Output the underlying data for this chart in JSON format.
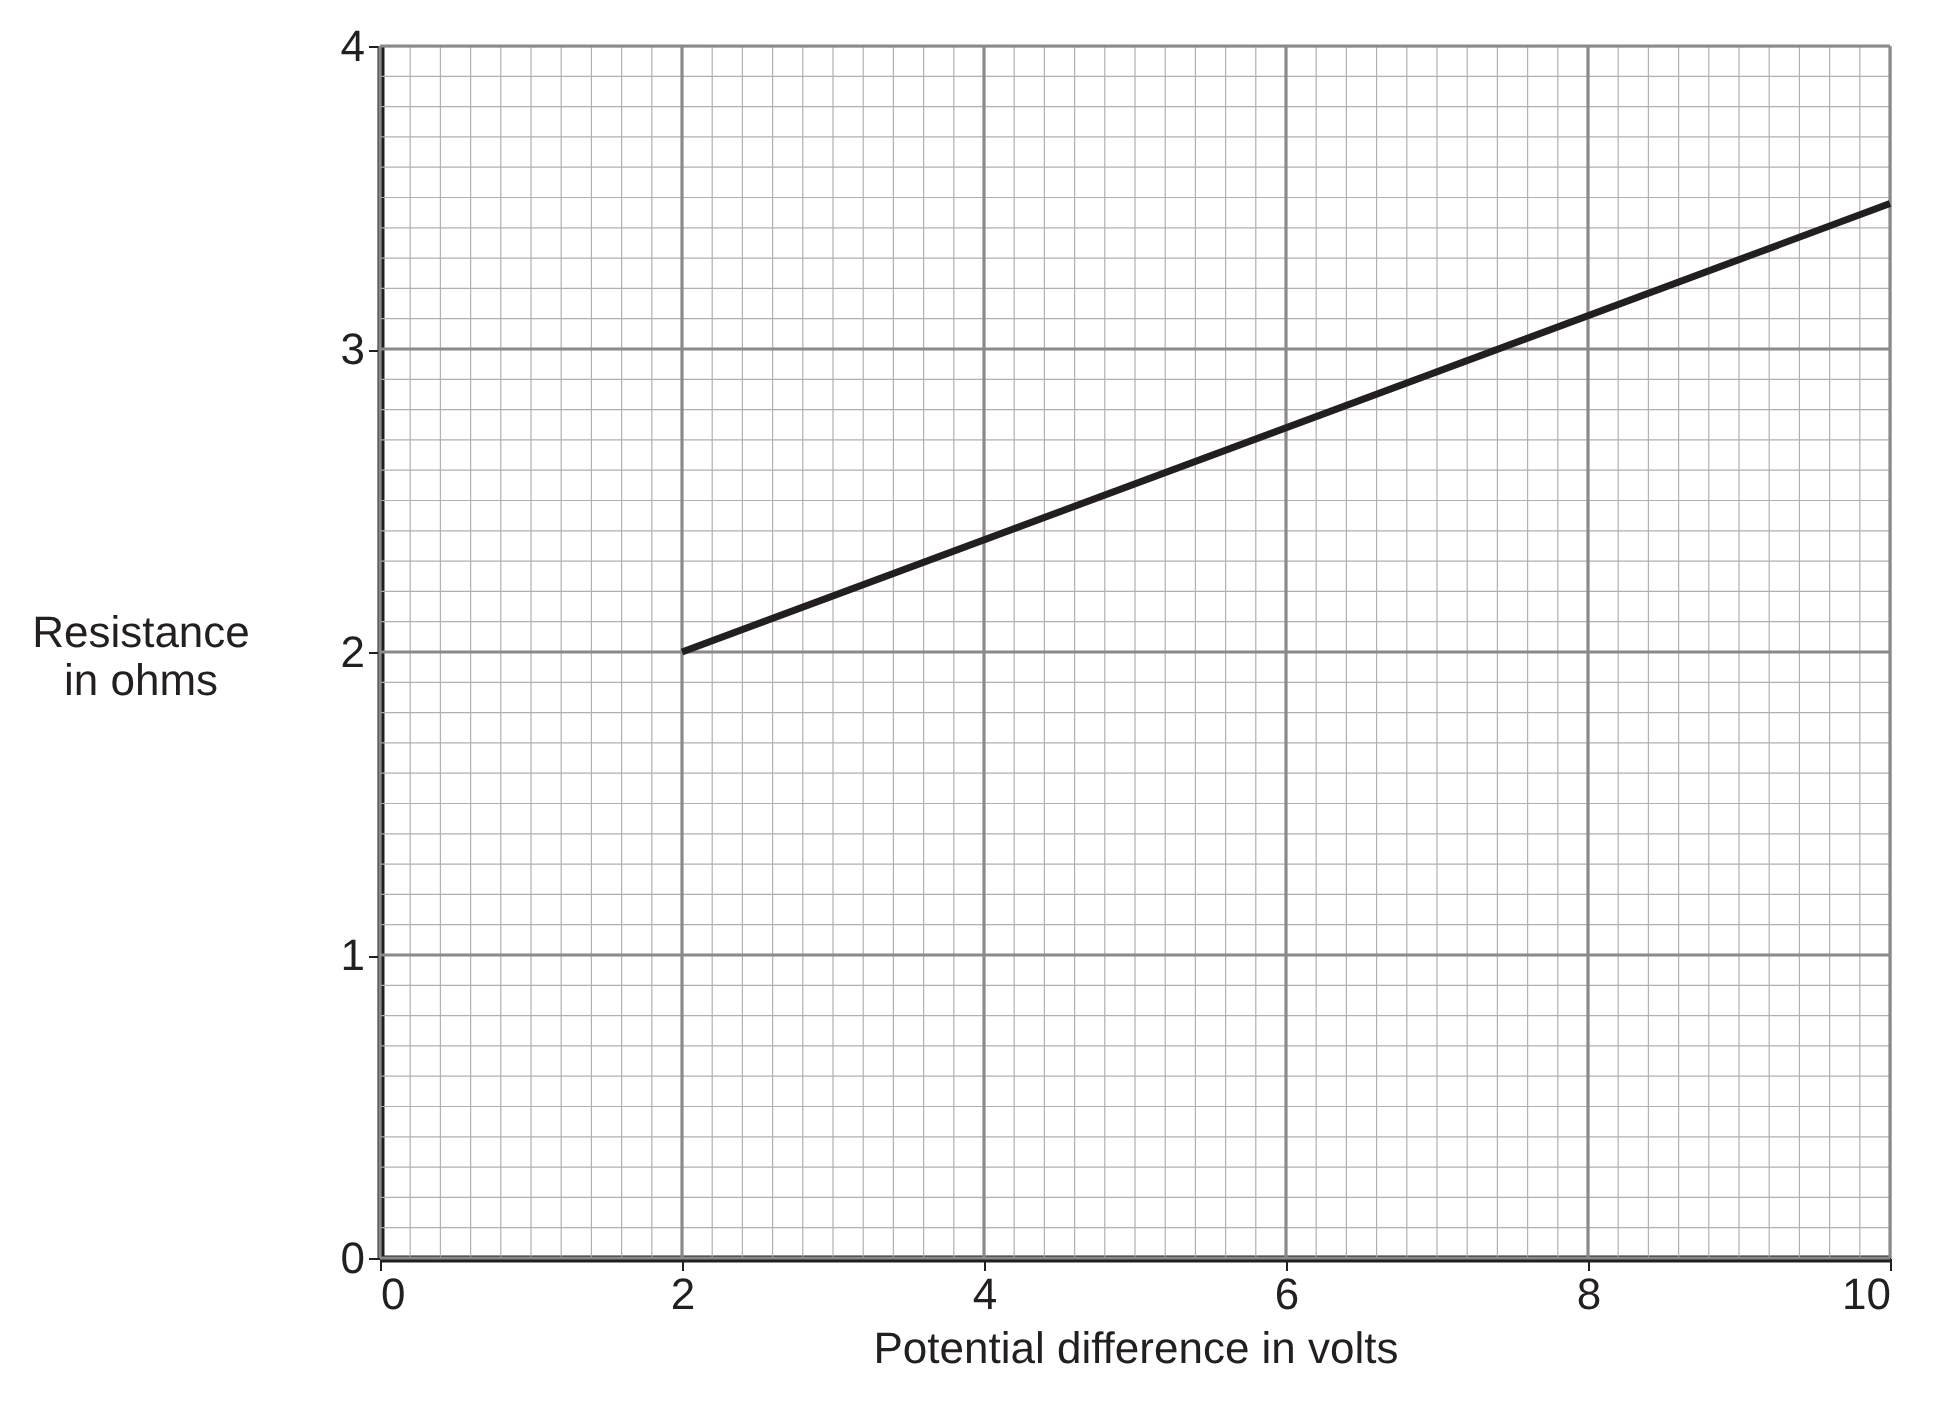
{
  "chart_data": {
    "type": "line",
    "xlabel": "Potential difference in volts",
    "ylabel": "Resistance in ohms",
    "x": [
      2,
      10
    ],
    "series": [
      {
        "color": "#231f20",
        "values": [
          2,
          3.48
        ]
      }
    ],
    "xlim": [
      0,
      10
    ],
    "xticks": [
      0,
      2,
      4,
      6,
      8,
      10
    ],
    "ylim": [
      0,
      4
    ],
    "yticks": [
      0,
      1,
      2,
      3,
      4
    ],
    "grid": true,
    "marker": "none",
    "line_style": "solid"
  }
}
